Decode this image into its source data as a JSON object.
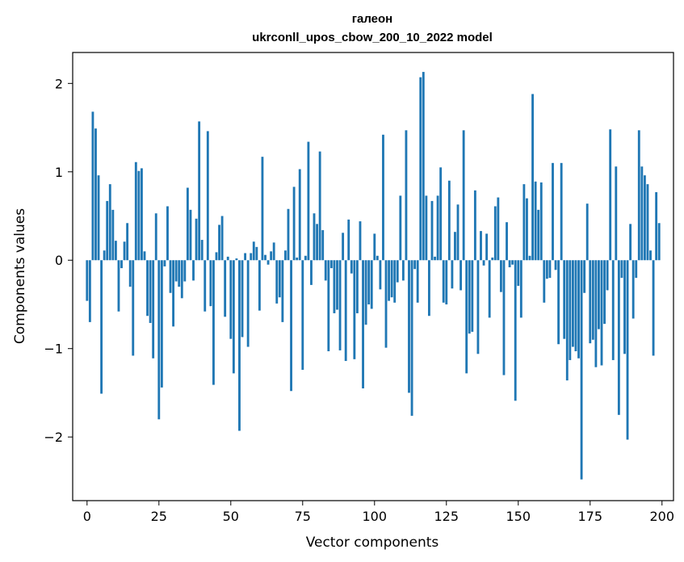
{
  "chart_data": {
    "type": "bar",
    "title": "галеон",
    "subtitle": "ukrconll_upos_cbow_200_10_2022 model",
    "xlabel": "Vector components",
    "ylabel": "Components values",
    "xlim": [
      -5,
      204
    ],
    "ylim": [
      -2.72,
      2.35
    ],
    "xticks": [
      0,
      25,
      50,
      75,
      100,
      125,
      150,
      175,
      200
    ],
    "yticks": [
      -2,
      -1,
      0,
      1,
      2
    ],
    "ytick_labels": [
      "−2",
      "−1",
      "0",
      "1",
      "2"
    ],
    "grid": false,
    "bar_color": "#1f77b4",
    "values": [
      -0.46,
      -0.7,
      1.68,
      1.49,
      0.96,
      -1.51,
      0.11,
      0.67,
      0.86,
      0.57,
      0.22,
      -0.58,
      -0.09,
      0.21,
      0.42,
      -0.3,
      -1.08,
      1.11,
      1.01,
      1.04,
      0.1,
      -0.63,
      -0.71,
      -1.11,
      0.53,
      -1.8,
      -1.44,
      -0.07,
      0.61,
      -0.37,
      -0.75,
      -0.24,
      -0.3,
      -0.43,
      -0.24,
      0.82,
      0.57,
      -0.23,
      0.47,
      1.57,
      0.23,
      -0.58,
      1.46,
      -0.52,
      -1.41,
      0.09,
      0.4,
      0.5,
      -0.64,
      0.04,
      -0.89,
      -1.28,
      0.02,
      -1.93,
      -0.87,
      0.08,
      -0.98,
      0.08,
      0.21,
      0.15,
      -0.57,
      1.17,
      0.06,
      -0.05,
      0.1,
      0.2,
      -0.49,
      -0.42,
      -0.7,
      0.11,
      0.58,
      -1.48,
      0.83,
      0.03,
      1.03,
      -1.24,
      0.05,
      1.34,
      -0.28,
      0.53,
      0.41,
      1.23,
      0.34,
      -0.23,
      -1.03,
      -0.09,
      -0.6,
      -0.56,
      -1.02,
      0.31,
      -1.14,
      0.46,
      -0.15,
      -1.12,
      -0.6,
      0.44,
      -1.45,
      -0.73,
      -0.5,
      -0.55,
      0.3,
      0.05,
      -0.33,
      1.42,
      -0.99,
      -0.46,
      -0.42,
      -0.48,
      -0.25,
      0.73,
      -0.23,
      1.47,
      -1.5,
      -1.76,
      -0.1,
      -0.48,
      2.07,
      2.13,
      0.73,
      -0.63,
      0.67,
      0.04,
      0.73,
      1.05,
      -0.48,
      -0.5,
      0.9,
      -0.32,
      0.32,
      0.63,
      -0.34,
      1.47,
      -1.28,
      -0.83,
      -0.81,
      0.79,
      -1.06,
      0.33,
      -0.06,
      0.3,
      -0.65,
      0.03,
      0.61,
      0.71,
      -0.36,
      -1.3,
      0.43,
      -0.08,
      -0.05,
      -1.59,
      -0.29,
      -0.65,
      0.86,
      0.7,
      0.05,
      1.88,
      0.89,
      0.57,
      0.88,
      -0.48,
      -0.21,
      -0.2,
      1.1,
      -0.11,
      -0.95,
      1.1,
      -0.89,
      -1.36,
      -1.13,
      -0.98,
      -1.03,
      -1.11,
      -2.48,
      -0.37,
      0.64,
      -0.94,
      -0.9,
      -1.21,
      -0.78,
      -1.19,
      -0.72,
      -0.34,
      1.48,
      -1.13,
      1.06,
      -1.75,
      -0.2,
      -1.06,
      -2.03,
      0.41,
      -0.66,
      -0.2,
      1.47,
      1.06,
      0.96,
      0.86,
      0.11,
      -1.08,
      0.77,
      0.42
    ]
  }
}
